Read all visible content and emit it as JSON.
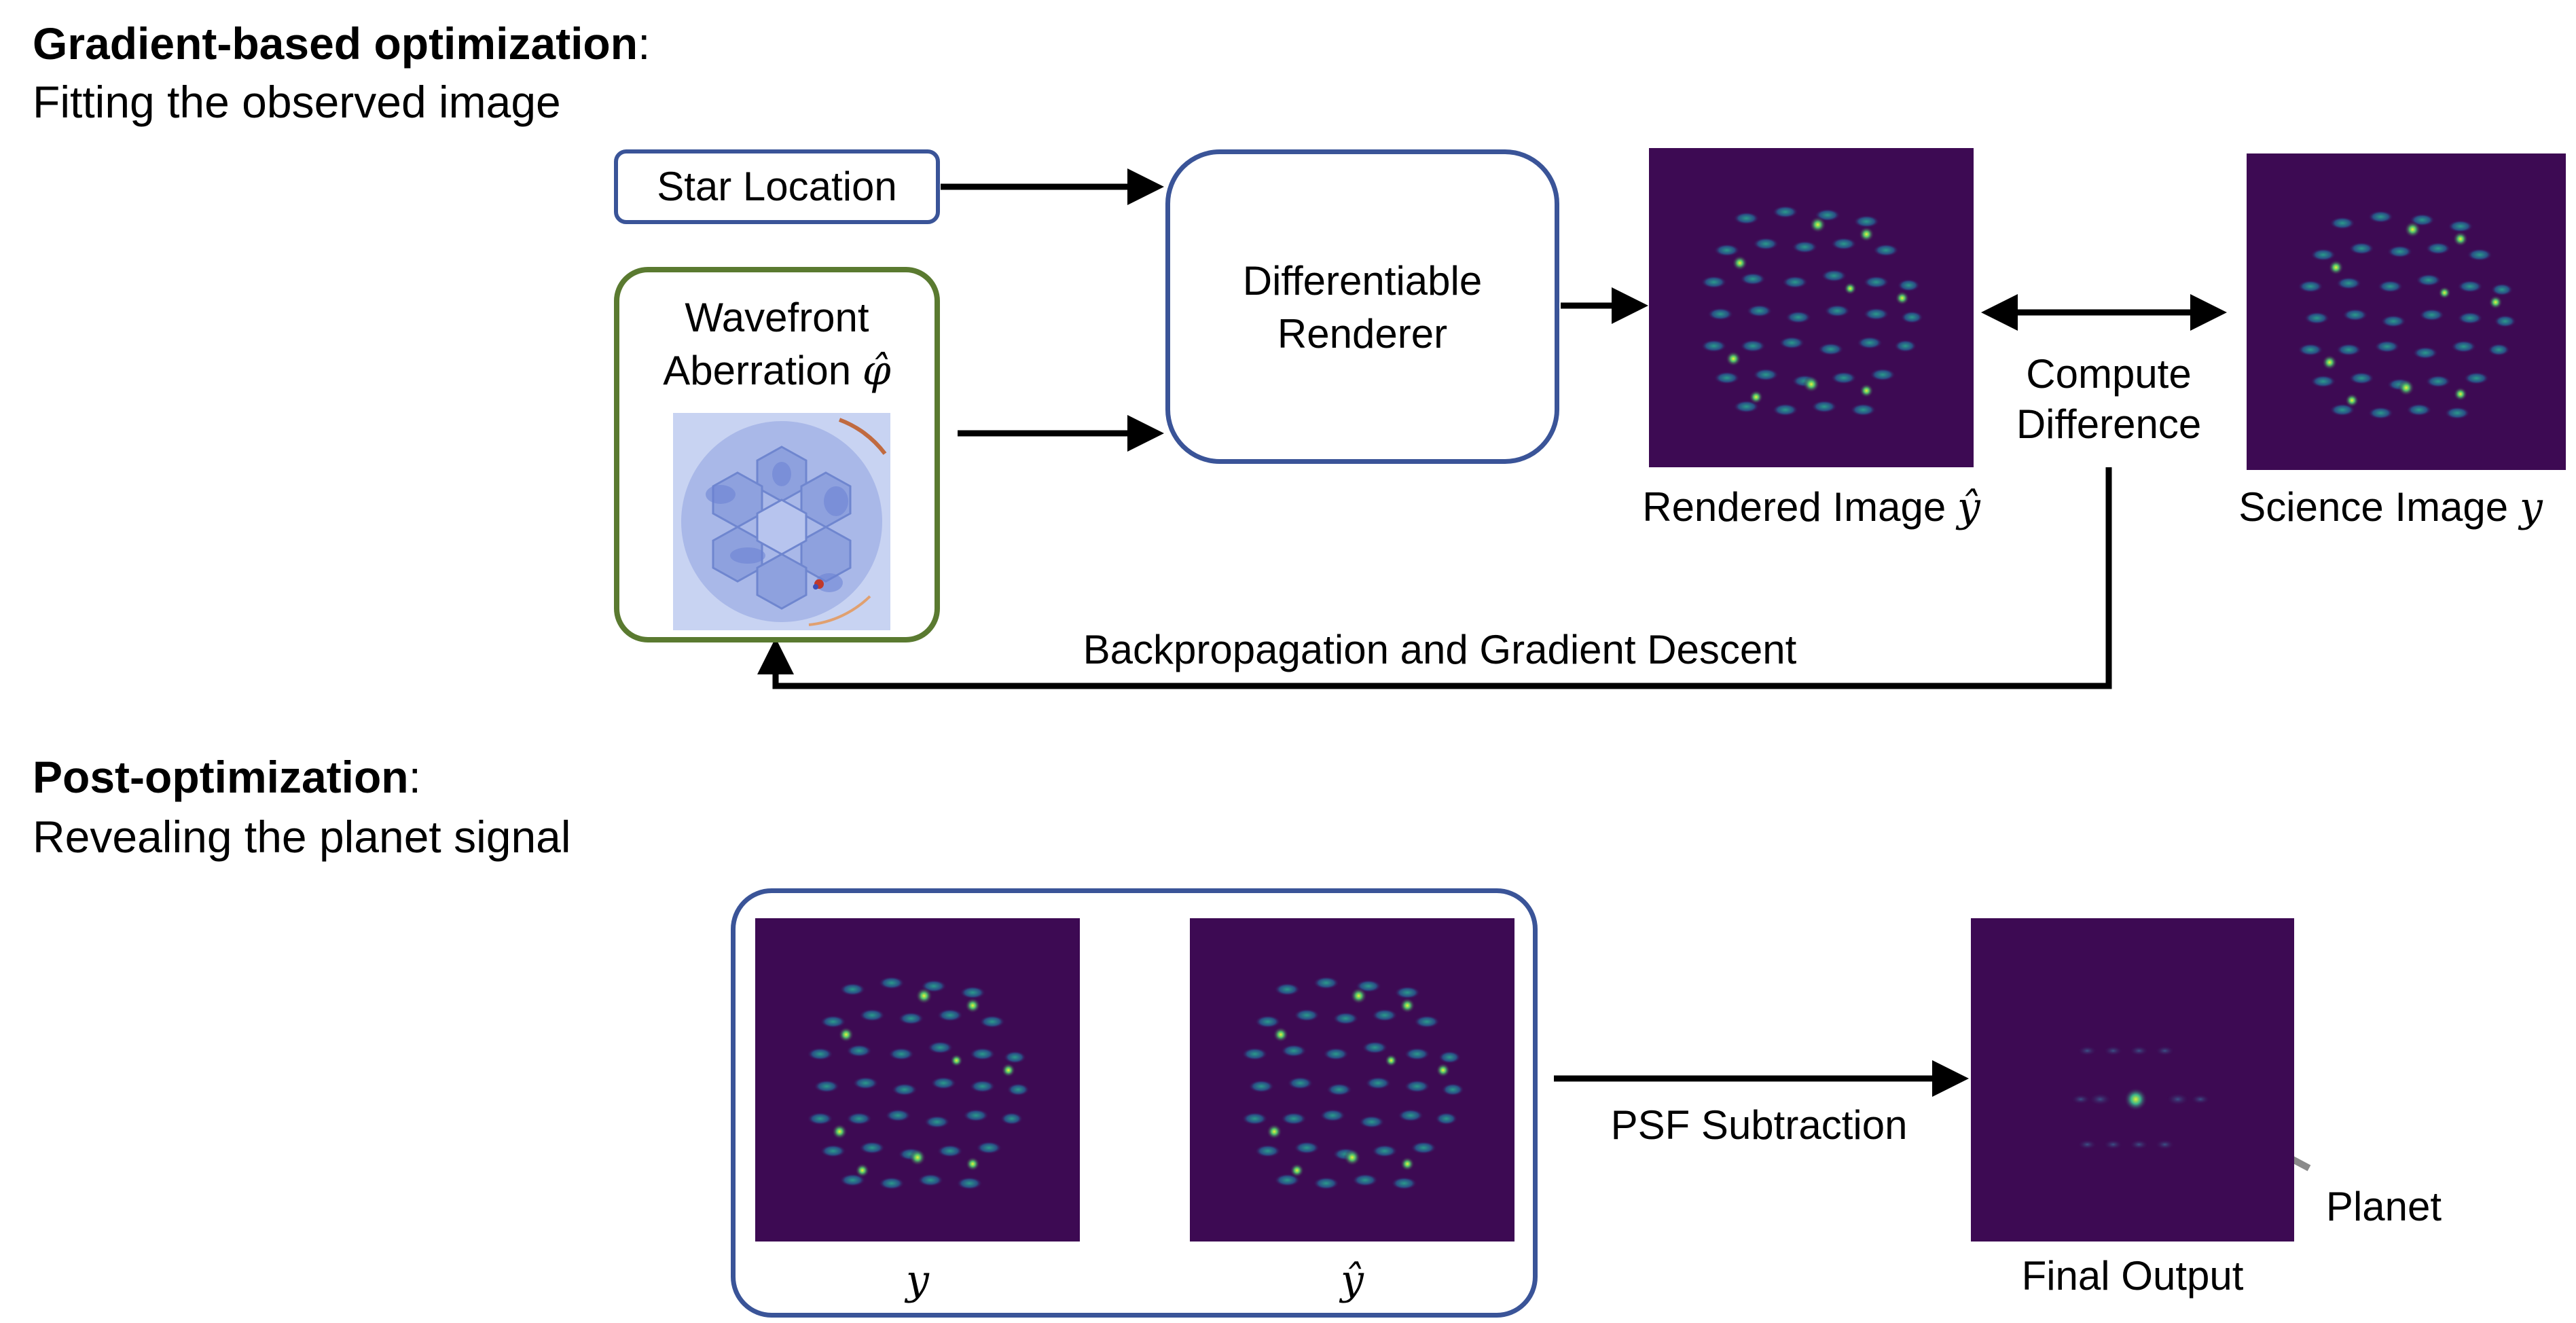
{
  "section1": {
    "title_bold": "Gradient-based optimization",
    "title_suffix": ":",
    "subtitle": "Fitting the observed image"
  },
  "section2": {
    "title_bold": "Post-optimization",
    "title_suffix": ":",
    "subtitle": "Revealing the planet signal"
  },
  "nodes": {
    "star_location": "Star Location",
    "wavefront_line1": "Wavefront",
    "wavefront_line2": "Aberration",
    "wavefront_symbol": "φ̂",
    "renderer_line1": "Differentiable",
    "renderer_line2": "Renderer",
    "compute_line1": "Compute",
    "compute_line2": "Difference"
  },
  "captions": {
    "rendered_text": "Rendered Image",
    "rendered_symbol": "ŷ",
    "science_text": "Science Image",
    "science_symbol": "y",
    "y_label": "y",
    "yhat_label": "ŷ",
    "final_output": "Final Output",
    "planet": "Planet"
  },
  "edges": {
    "backprop": "Backpropagation and Gradient Descent",
    "psf_subtraction": "PSF Subtraction"
  },
  "colors": {
    "blue_border": "#3a5498",
    "green_border": "#5a7a30",
    "psf_background": "#3d0a53",
    "planet_arrow": "#8a8a8a"
  }
}
